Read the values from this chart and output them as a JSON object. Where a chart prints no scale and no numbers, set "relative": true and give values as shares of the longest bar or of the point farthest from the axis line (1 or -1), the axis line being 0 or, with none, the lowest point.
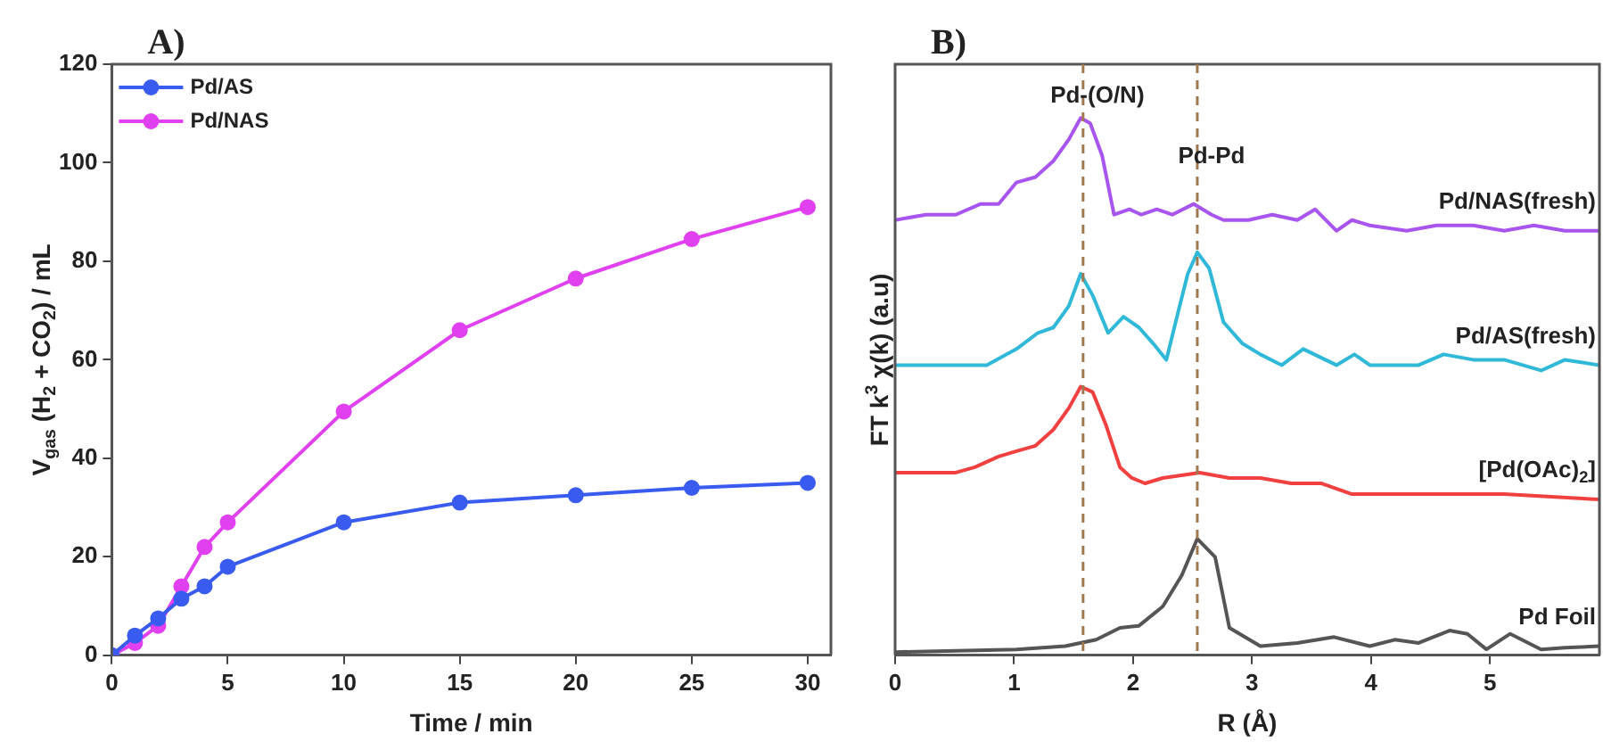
{
  "chart_data": [
    {
      "type": "line",
      "title": "A)",
      "xlabel": "Time / min",
      "ylabel": "V$_{gas}$ (H$_{2}$ + CO$_{2}$) / mL",
      "x": [
        0,
        1,
        2,
        3,
        4,
        5,
        10,
        15,
        20,
        25,
        30
      ],
      "xlim": [
        0,
        31
      ],
      "xticks": [
        0,
        5,
        10,
        15,
        20,
        25,
        30
      ],
      "ylim": [
        0,
        120
      ],
      "yticks": [
        0,
        20,
        40,
        60,
        80,
        100,
        120
      ],
      "marker": "circle",
      "legend": "top left",
      "grid": false,
      "series": [
        {
          "name": "Pd/AS",
          "color": "#3a5bf0",
          "values": [
            0,
            4,
            7.5,
            11.5,
            14,
            18,
            27,
            31,
            32.5,
            34,
            35
          ]
        },
        {
          "name": "Pd/NAS",
          "color": "#e040f0",
          "values": [
            0,
            2.5,
            6,
            14,
            22,
            27,
            49.5,
            66,
            76.5,
            84.5,
            91
          ]
        }
      ]
    },
    {
      "type": "line",
      "title": "B)",
      "xlabel": "R (Å)",
      "ylabel": "FT k$^{3}$ χ(k) (a.u)",
      "relative": true,
      "xlim": [
        0,
        5.92
      ],
      "xticks": [
        0,
        1,
        2,
        3,
        4,
        5
      ],
      "tick_labels": "x",
      "marker": "none",
      "legend": false,
      "grid": false,
      "ref_lines": [
        {
          "axis": "x",
          "value": 1.58,
          "label": "Pd-(O/N)",
          "color": "#a07850",
          "line_style": "dashed"
        },
        {
          "axis": "x",
          "value": 2.54,
          "label": "Pd-Pd",
          "color": "#a07850",
          "line_style": "dashed"
        }
      ],
      "series": [
        {
          "name": "Pd/NAS(fresh)",
          "color": "#a855f0",
          "x": [
            0,
            0.26,
            0.51,
            0.72,
            0.87,
            1.02,
            1.18,
            1.33,
            1.46,
            1.56,
            1.64,
            1.74,
            1.84,
            1.97,
            2.07,
            2.2,
            2.33,
            2.51,
            2.66,
            2.76,
            2.97,
            3.17,
            3.38,
            3.53,
            3.71,
            3.84,
            3.99,
            4.3,
            4.55,
            4.86,
            5.12,
            5.37,
            5.63,
            5.92
          ],
          "values": [
            0.81,
            0.82,
            0.82,
            0.84,
            0.84,
            0.88,
            0.89,
            0.92,
            0.96,
            1,
            0.99,
            0.93,
            0.82,
            0.83,
            0.82,
            0.83,
            0.82,
            0.84,
            0.82,
            0.81,
            0.81,
            0.82,
            0.81,
            0.83,
            0.79,
            0.81,
            0.8,
            0.79,
            0.8,
            0.8,
            0.79,
            0.8,
            0.79,
            0.79
          ]
        },
        {
          "name": "Pd/AS(fresh)",
          "color": "#30b8d8",
          "x": [
            0,
            0.77,
            1.02,
            1.2,
            1.33,
            1.46,
            1.56,
            1.66,
            1.79,
            1.92,
            2.05,
            2.17,
            2.28,
            2.38,
            2.46,
            2.54,
            2.64,
            2.76,
            2.92,
            3.07,
            3.25,
            3.43,
            3.71,
            3.86,
            3.99,
            4.4,
            4.61,
            4.86,
            5.12,
            5.43,
            5.63,
            5.92
          ],
          "values": [
            0.54,
            0.54,
            0.57,
            0.6,
            0.61,
            0.65,
            0.71,
            0.67,
            0.6,
            0.63,
            0.61,
            0.58,
            0.55,
            0.64,
            0.71,
            0.75,
            0.72,
            0.62,
            0.58,
            0.56,
            0.54,
            0.57,
            0.54,
            0.56,
            0.54,
            0.54,
            0.56,
            0.55,
            0.55,
            0.53,
            0.55,
            0.54
          ]
        },
        {
          "name": "[Pd(OAc)$_{2}$]",
          "color": "#f04040",
          "x": [
            0,
            0.51,
            0.67,
            0.87,
            1.02,
            1.18,
            1.33,
            1.46,
            1.56,
            1.66,
            1.77,
            1.89,
            1.99,
            2.1,
            2.25,
            2.56,
            2.81,
            3.07,
            3.33,
            3.58,
            3.84,
            4.09,
            4.61,
            5.12,
            5.92
          ],
          "values": [
            0.34,
            0.34,
            0.35,
            0.37,
            0.38,
            0.39,
            0.42,
            0.46,
            0.5,
            0.49,
            0.43,
            0.35,
            0.33,
            0.32,
            0.33,
            0.34,
            0.33,
            0.33,
            0.32,
            0.32,
            0.3,
            0.3,
            0.3,
            0.3,
            0.29
          ]
        },
        {
          "name": "Pd Foil",
          "color": "#555555",
          "x": [
            0,
            1.02,
            1.43,
            1.69,
            1.89,
            2.05,
            2.25,
            2.41,
            2.54,
            2.69,
            2.81,
            3.07,
            3.38,
            3.69,
            3.99,
            4.2,
            4.4,
            4.66,
            4.81,
            4.97,
            5.17,
            5.43,
            5.63,
            5.92
          ],
          "values": [
            0.006,
            0.011,
            0.017,
            0.029,
            0.051,
            0.055,
            0.091,
            0.149,
            0.217,
            0.183,
            0.051,
            0.017,
            0.023,
            0.034,
            0.017,
            0.029,
            0.023,
            0.046,
            0.04,
            0.011,
            0.04,
            0.011,
            0.014,
            0.017
          ]
        }
      ]
    }
  ]
}
